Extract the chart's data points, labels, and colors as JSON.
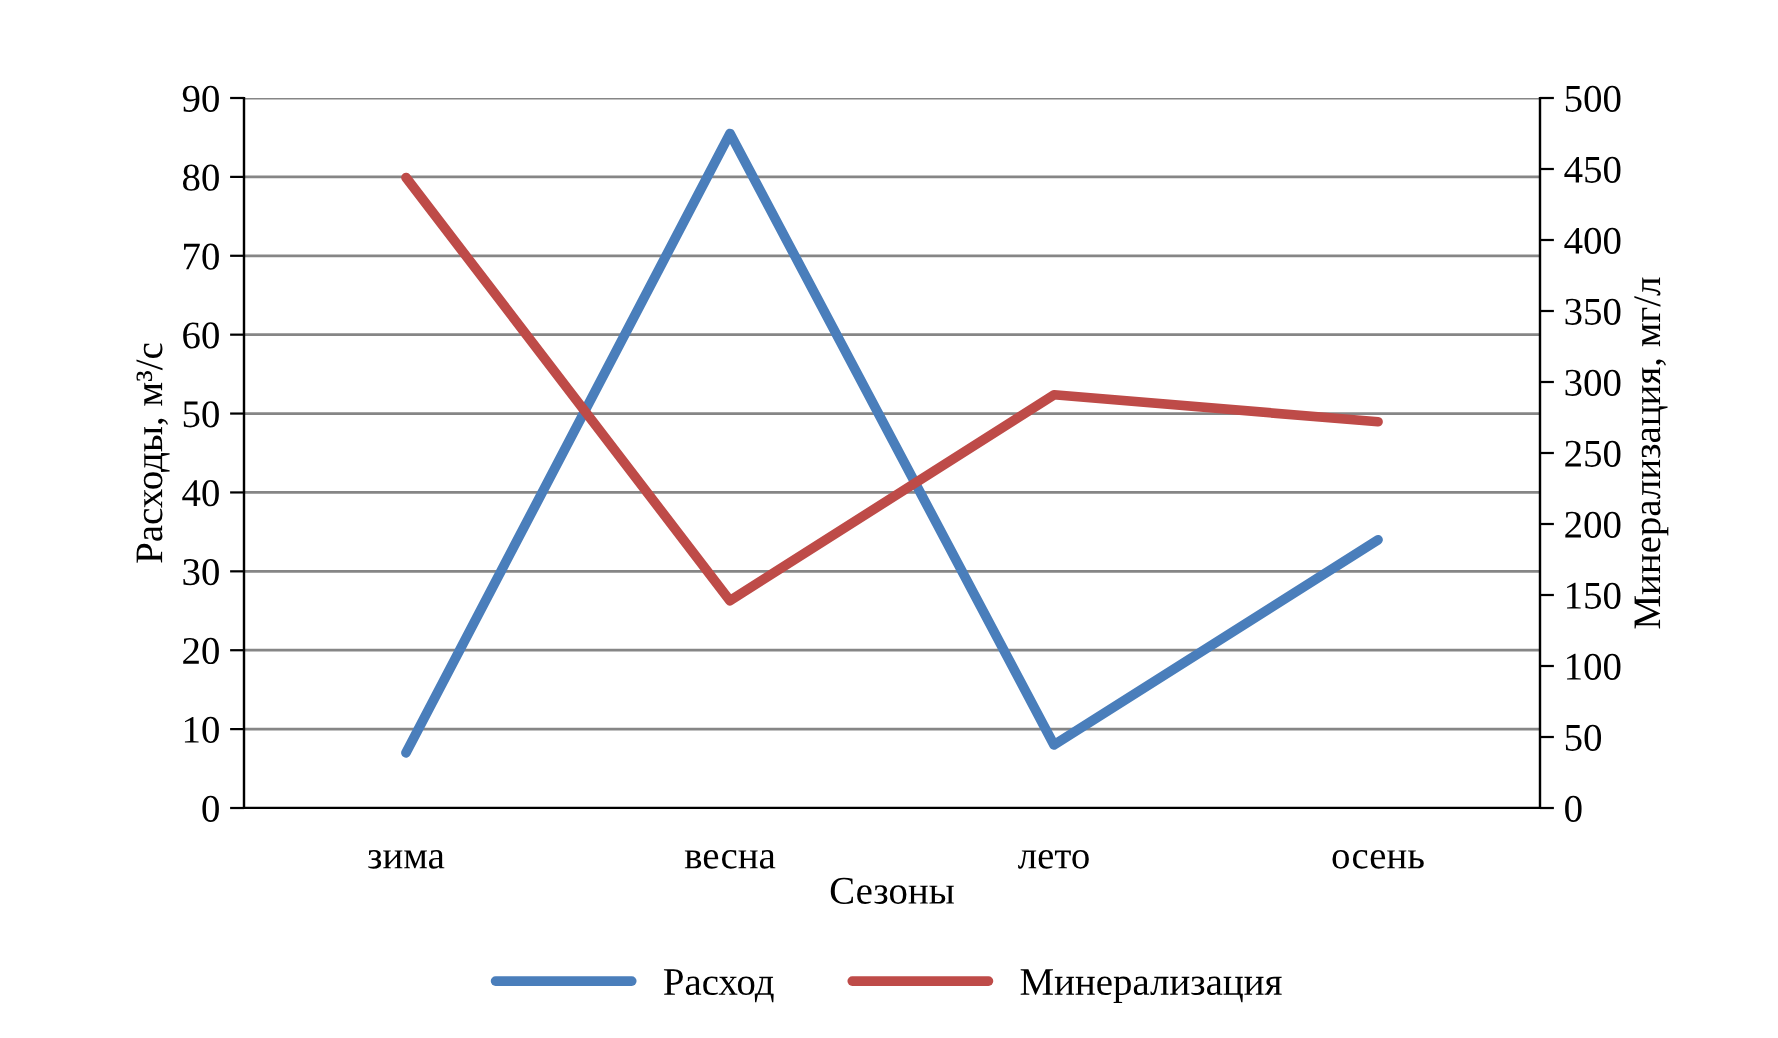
{
  "chart_data": {
    "type": "line",
    "categories": [
      "зима",
      "весна",
      "лето",
      "осень"
    ],
    "xlabel": "Сезоны",
    "ylabel": "Расходы, м³/с",
    "y2label": "Минерализация, мг/л",
    "series": [
      {
        "name": "Расход",
        "color": "#4a7ebb",
        "values": [
          7,
          85.5,
          8,
          34
        ]
      },
      {
        "name": "Минерализация",
        "color": "#be4b48",
        "values": [
          444,
          146,
          291,
          272
        ],
        "axis": "y2"
      }
    ],
    "ylim": [
      0,
      90
    ],
    "yticks": [
      0,
      10,
      20,
      30,
      40,
      50,
      60,
      70,
      80,
      90
    ],
    "y2lim": [
      0,
      500
    ],
    "y2ticks": [
      0,
      50,
      100,
      150,
      200,
      250,
      300,
      350,
      400,
      450,
      500
    ],
    "grid": "y",
    "legend": "bottom",
    "marker": "none",
    "line_style": "solid"
  }
}
